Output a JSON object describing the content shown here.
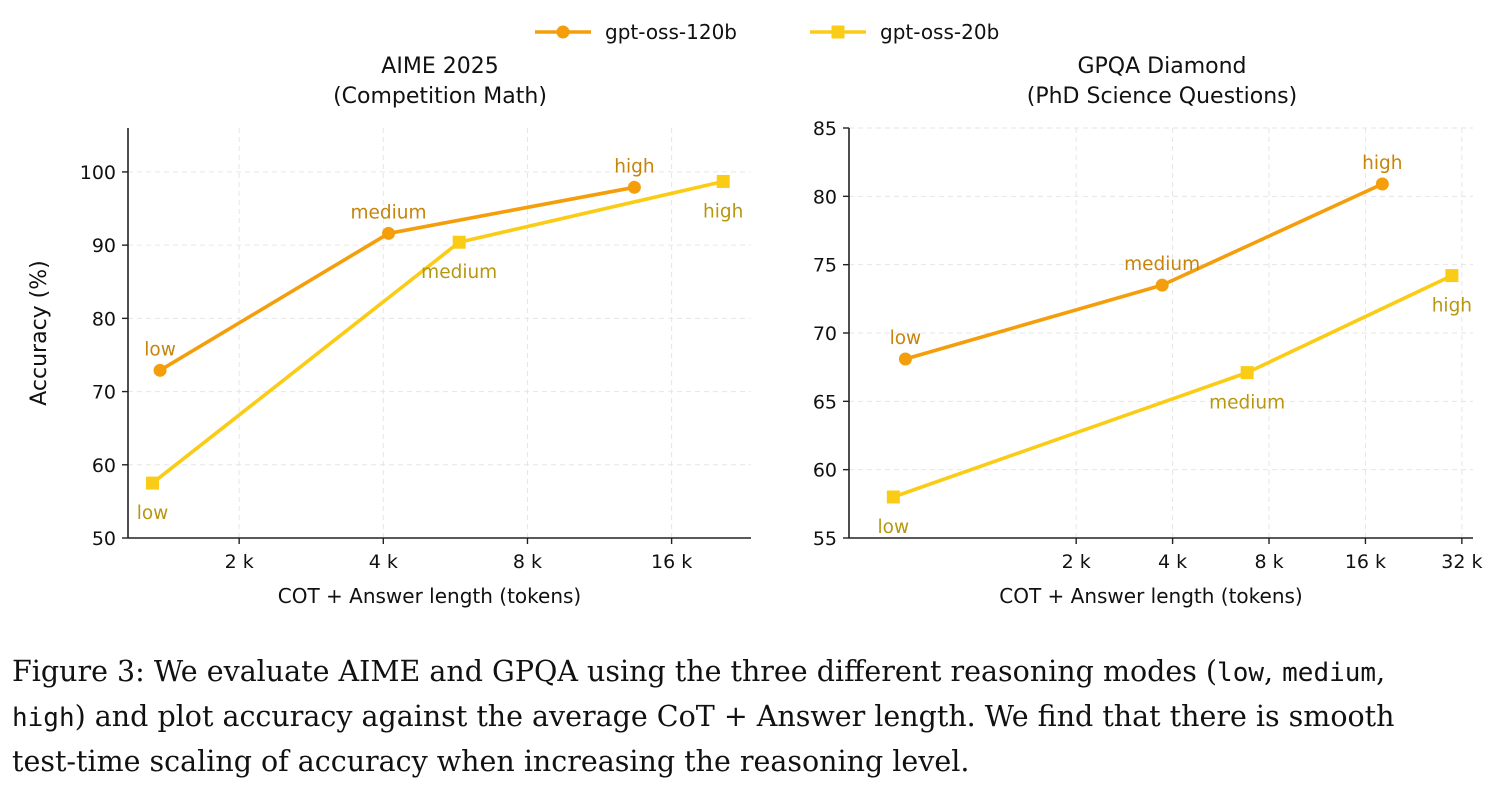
{
  "legend": [
    {
      "name": "gpt-oss-120b",
      "color": "#F59E0B",
      "marker": "circle"
    },
    {
      "name": "gpt-oss-20b",
      "color": "#FACC15",
      "marker": "square"
    }
  ],
  "chart_data": [
    {
      "type": "line",
      "title": "AIME 2025",
      "subtitle": "(Competition Math)",
      "xlabel": "COT + Answer length (tokens)",
      "ylabel": "Accuracy (%)",
      "xscale": "log2",
      "xlim": [
        1200,
        24000
      ],
      "ylim": [
        50,
        106
      ],
      "xticks": [
        2048,
        4096,
        8192,
        16384
      ],
      "xtick_labels": [
        "2 k",
        "4 k",
        "8 k",
        "16 k"
      ],
      "yticks": [
        50,
        60,
        70,
        80,
        90,
        100
      ],
      "ytick_labels": [
        "50",
        "60",
        "70",
        "80",
        "90",
        "100"
      ],
      "grid": true,
      "series": [
        {
          "name": "gpt-oss-120b",
          "color": "#F59E0B",
          "marker": "circle",
          "x": [
            1400,
            4200,
            13700
          ],
          "y": [
            72.9,
            91.6,
            97.9
          ],
          "labels": [
            "low",
            "medium",
            "high"
          ],
          "label_color": "#C7830A",
          "label_positions": [
            "above",
            "above",
            "above"
          ]
        },
        {
          "name": "gpt-oss-20b",
          "color": "#FACC15",
          "marker": "square",
          "x": [
            1350,
            5900,
            21000
          ],
          "y": [
            57.5,
            90.4,
            98.7
          ],
          "labels": [
            "low",
            "medium",
            "high"
          ],
          "label_color": "#B89710",
          "label_positions": [
            "below",
            "below",
            "below"
          ]
        }
      ]
    },
    {
      "type": "line",
      "title": "GPQA Diamond",
      "subtitle": "(PhD Science Questions)",
      "xlabel": "COT + Answer length (tokens)",
      "ylabel": "",
      "xscale": "log2",
      "xlim": [
        400,
        35500
      ],
      "ylim": [
        55,
        85
      ],
      "xticks": [
        2048,
        4096,
        8192,
        16384,
        32768
      ],
      "xtick_labels": [
        "2 k",
        "4 k",
        "8 k",
        "16 k",
        "32 k"
      ],
      "yticks": [
        55,
        60,
        65,
        70,
        75,
        80,
        85
      ],
      "ytick_labels": [
        "55",
        "60",
        "65",
        "70",
        "75",
        "80",
        "85"
      ],
      "grid": true,
      "series": [
        {
          "name": "gpt-oss-120b",
          "color": "#F59E0B",
          "marker": "circle",
          "x": [
            600,
            3800,
            18500
          ],
          "y": [
            68.1,
            73.5,
            80.9
          ],
          "labels": [
            "low",
            "medium",
            "high"
          ],
          "label_color": "#C7830A",
          "label_positions": [
            "above",
            "above",
            "above"
          ]
        },
        {
          "name": "gpt-oss-20b",
          "color": "#FACC15",
          "marker": "square",
          "x": [
            550,
            7000,
            30500
          ],
          "y": [
            58.0,
            67.1,
            74.2
          ],
          "labels": [
            "low",
            "medium",
            "high"
          ],
          "label_color": "#B89710",
          "label_positions": [
            "below",
            "below",
            "below"
          ]
        }
      ]
    }
  ],
  "caption": {
    "line1_a": "Figure 3: We evaluate AIME and GPQA using the three different reasoning modes (",
    "low": "low",
    "comma1": ", ",
    "medium": "medium",
    "comma2": ",",
    "high": "high",
    "line2_rest": ") and plot accuracy against the average CoT + Answer length. We find that there is smooth",
    "line3": "test-time scaling of accuracy when increasing the reasoning level."
  }
}
